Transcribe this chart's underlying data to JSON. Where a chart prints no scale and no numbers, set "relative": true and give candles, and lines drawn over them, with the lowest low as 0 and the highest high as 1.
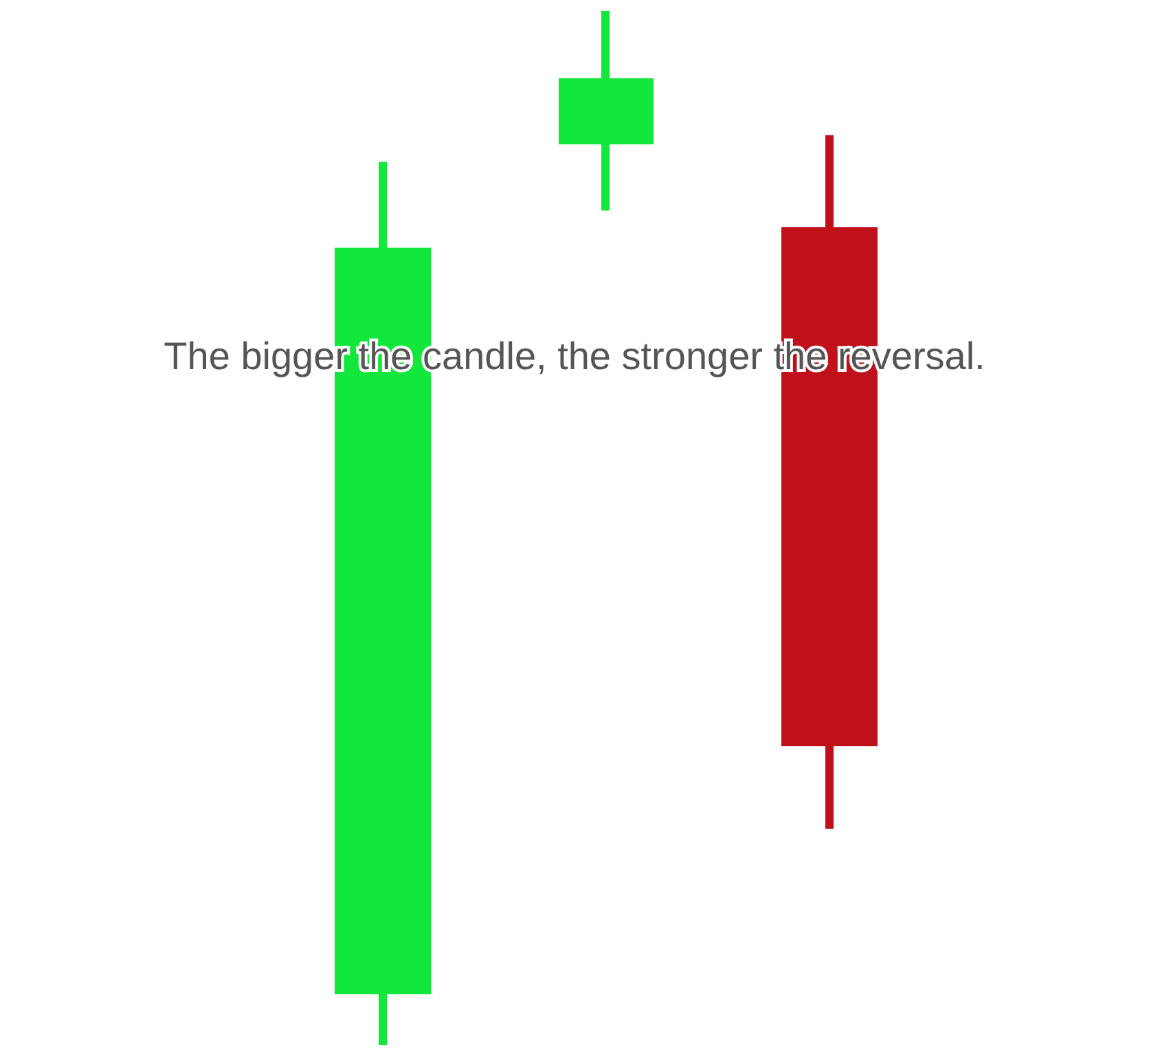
{
  "chart_data": {
    "type": "candlestick",
    "relative": true,
    "categories": [
      null,
      null,
      null
    ],
    "ohlc": [
      [
        0.053,
        0.854,
        0,
        0.767
      ],
      [
        0.875,
        1,
        0.807,
        0.931
      ],
      [
        0.787,
        0.88,
        0.209,
        0.293
      ]
    ],
    "colors": [
      "#12e83c",
      "#12e83c",
      "#c0111b"
    ],
    "annotations": [
      "The bigger the candle, the stronger the reversal."
    ]
  }
}
